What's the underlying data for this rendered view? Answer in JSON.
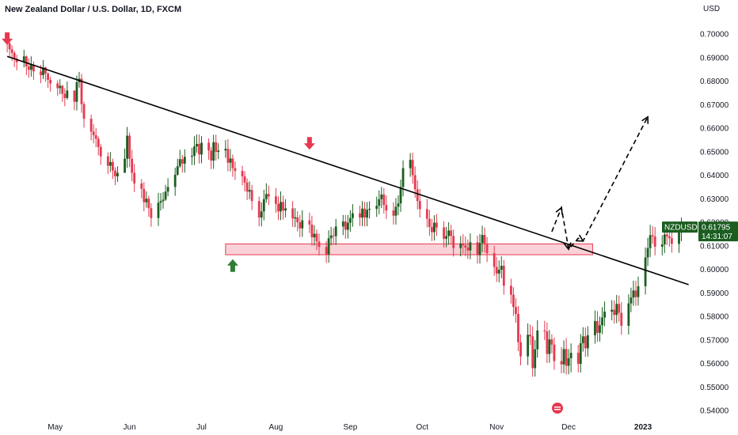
{
  "chart_data": {
    "type": "candlestick",
    "title": "New Zealand Dollar / U.S. Dollar, 1D, FXCM",
    "currency_label": "USD",
    "y_ticks": [
      "0.70000",
      "0.69000",
      "0.68000",
      "0.67000",
      "0.66000",
      "0.65000",
      "0.64000",
      "0.63000",
      "0.62000",
      "0.61000",
      "0.60000",
      "0.59000",
      "0.58000",
      "0.57000",
      "0.56000",
      "0.55000",
      "0.54000"
    ],
    "y_tick_values": [
      0.7,
      0.69,
      0.68,
      0.67,
      0.66,
      0.65,
      0.64,
      0.63,
      0.62,
      0.61,
      0.6,
      0.59,
      0.58,
      0.57,
      0.56,
      0.55,
      0.54
    ],
    "ylim": [
      0.5385,
      0.713
    ],
    "x_labels": [
      {
        "label": "May",
        "date": "2022-05-01"
      },
      {
        "label": "Jun",
        "date": "2022-06-01"
      },
      {
        "label": "Jul",
        "date": "2022-07-01"
      },
      {
        "label": "Aug",
        "date": "2022-08-01"
      },
      {
        "label": "Sep",
        "date": "2022-09-01"
      },
      {
        "label": "Oct",
        "date": "2022-10-01"
      },
      {
        "label": "Nov",
        "date": "2022-11-01"
      },
      {
        "label": "Dec",
        "date": "2022-12-01"
      },
      {
        "label": "2023",
        "date": "2023-01-01"
      }
    ],
    "xlim": [
      "2022-04-08",
      "2023-01-21"
    ],
    "colors": {
      "up": "#1b5e20",
      "down": "#e53950",
      "trendline": "#000000",
      "zone_fill": "#f8c9cf",
      "zone_stroke": "#e53950",
      "arrow_down": "#e53950",
      "arrow_up": "#2e7d32",
      "tag_bg": "#1b5e20",
      "tag_text": "#ffffff"
    },
    "closes": [
      0.696,
      0.6935,
      0.692,
      0.6895,
      0.688,
      0.6905,
      0.6862,
      0.6848,
      0.687,
      0.6841,
      0.6825,
      0.6858,
      0.6832,
      0.6805,
      0.679,
      0.677,
      0.678,
      0.6746,
      0.6728,
      0.676,
      0.6712,
      0.6795,
      0.681,
      0.6702,
      0.664,
      0.6585,
      0.657,
      0.6555,
      0.652,
      0.648,
      0.644,
      0.6456,
      0.642,
      0.6395,
      0.641,
      0.647,
      0.6568,
      0.647,
      0.641,
      0.6365,
      0.6342,
      0.6285,
      0.63,
      0.626,
      0.6218,
      0.6283,
      0.629,
      0.6296,
      0.633,
      0.635,
      0.6402,
      0.6438,
      0.6468,
      0.6449,
      0.6478,
      0.6482,
      0.6522,
      0.6533,
      0.6488,
      0.6538,
      0.6505,
      0.6462,
      0.654,
      0.6499,
      0.6505,
      0.6512,
      0.6453,
      0.6471,
      0.643,
      0.6418,
      0.6395,
      0.6369,
      0.633,
      0.6337,
      0.629,
      0.622,
      0.6246,
      0.6298,
      0.632,
      0.631,
      0.6278,
      0.6246,
      0.6286,
      0.625,
      0.6259,
      0.6216,
      0.6221,
      0.62,
      0.6174,
      0.6208,
      0.619,
      0.6136,
      0.6151,
      0.6118,
      0.6095,
      0.6064,
      0.6132,
      0.6144,
      0.6141,
      0.6182,
      0.6203,
      0.6168,
      0.6198,
      0.6218,
      0.6238,
      0.622,
      0.6258,
      0.622,
      0.6253,
      0.6257,
      0.627,
      0.6298,
      0.6318,
      0.6273,
      0.625,
      0.6228,
      0.6266,
      0.628,
      0.635,
      0.643,
      0.6465,
      0.64,
      0.634,
      0.629,
      0.6256,
      0.6215,
      0.618,
      0.6158,
      0.6198,
      0.6178,
      0.613,
      0.6141,
      0.6165,
      0.6142,
      0.609,
      0.611,
      0.6102,
      0.6092,
      0.608,
      0.6115,
      0.606,
      0.6112,
      0.6146,
      0.6108,
      0.6068,
      0.601,
      0.5982,
      0.5998,
      0.6015,
      0.593,
      0.5892,
      0.584,
      0.581,
      0.569,
      0.563,
      0.5722,
      0.5715,
      0.558,
      0.566,
      0.574,
      0.5736,
      0.564,
      0.5702,
      0.568,
      0.561,
      0.5596,
      0.5661,
      0.559,
      0.5622,
      0.5645,
      0.5598,
      0.5686,
      0.5715,
      0.5664,
      0.572,
      0.578,
      0.573,
      0.5762,
      0.5795,
      0.582,
      0.5828,
      0.5806,
      0.5853,
      0.5815,
      0.576,
      0.5855,
      0.588,
      0.591,
      0.5882,
      0.5928,
      0.605,
      0.609,
      0.6145,
      0.614,
      0.6096,
      0.6106,
      0.6148,
      0.614,
      0.6132,
      0.6108,
      0.6158,
      0.618
    ],
    "highs": [
      0.6992,
      0.697,
      0.6952,
      0.6928,
      0.6912,
      0.6933,
      0.6909,
      0.6896,
      0.6905,
      0.6883,
      0.6868,
      0.6889,
      0.6861,
      0.6837,
      0.6818,
      0.6803,
      0.6808,
      0.6784,
      0.6769,
      0.6798,
      0.6754,
      0.6823,
      0.6839,
      0.6831,
      0.6712,
      0.6657,
      0.6616,
      0.6601,
      0.6565,
      0.6532,
      0.6497,
      0.6498,
      0.647,
      0.6434,
      0.6438,
      0.6513,
      0.6605,
      0.6581,
      0.6508,
      0.6448,
      0.6383,
      0.6371,
      0.6331,
      0.6313,
      0.628,
      0.6325,
      0.6324,
      0.6328,
      0.6359,
      0.6387,
      0.6432,
      0.647,
      0.6508,
      0.6486,
      0.651,
      0.6516,
      0.6566,
      0.6573,
      0.6573,
      0.6566,
      0.6556,
      0.652,
      0.6572,
      0.6572,
      0.6536,
      0.6549,
      0.6553,
      0.6511,
      0.6488,
      0.6459,
      0.644,
      0.6417,
      0.6386,
      0.6374,
      0.6359,
      0.6309,
      0.6284,
      0.6338,
      0.6366,
      0.6356,
      0.6345,
      0.631,
      0.6331,
      0.6313,
      0.6298,
      0.629,
      0.626,
      0.6247,
      0.6231,
      0.6251,
      0.6241,
      0.6228,
      0.6187,
      0.6169,
      0.6152,
      0.612,
      0.6166,
      0.618,
      0.6175,
      0.6214,
      0.6231,
      0.6231,
      0.6231,
      0.6251,
      0.6277,
      0.6271,
      0.629,
      0.6287,
      0.6286,
      0.6289,
      0.6309,
      0.6335,
      0.635,
      0.6345,
      0.6314,
      0.6285,
      0.6303,
      0.6315,
      0.6381,
      0.6463,
      0.6494,
      0.6495,
      0.6437,
      0.6378,
      0.6341,
      0.6299,
      0.6252,
      0.6214,
      0.623,
      0.6235,
      0.6204,
      0.618,
      0.62,
      0.6189,
      0.6169,
      0.6141,
      0.6149,
      0.614,
      0.6127,
      0.6153,
      0.6143,
      0.615,
      0.6185,
      0.6178,
      0.6137,
      0.61,
      0.6053,
      0.6038,
      0.6055,
      0.604,
      0.596,
      0.5924,
      0.5877,
      0.5844,
      0.5724,
      0.577,
      0.5765,
      0.5757,
      0.57,
      0.5784,
      0.5781,
      0.5774,
      0.5742,
      0.5724,
      0.571,
      0.5669,
      0.5698,
      0.5708,
      0.5661,
      0.5685,
      0.5679,
      0.5725,
      0.5754,
      0.5753,
      0.5758,
      0.5825,
      0.5822,
      0.5799,
      0.5839,
      0.5863,
      0.5869,
      0.5868,
      0.5891,
      0.5889,
      0.586,
      0.5894,
      0.5922,
      0.5952,
      0.5951,
      0.5969,
      0.6093,
      0.6134,
      0.6189,
      0.6183,
      0.618,
      0.6145,
      0.619,
      0.6185,
      0.6175,
      0.617,
      0.6198,
      0.622
    ],
    "lows": [
      0.6922,
      0.6898,
      0.6885,
      0.686,
      0.6846,
      0.6858,
      0.6826,
      0.6814,
      0.6819,
      0.6805,
      0.6791,
      0.6808,
      0.6797,
      0.6771,
      0.6755,
      0.6738,
      0.6744,
      0.6712,
      0.6693,
      0.6721,
      0.6676,
      0.6675,
      0.6772,
      0.6665,
      0.6602,
      0.6548,
      0.6535,
      0.6519,
      0.6484,
      0.6444,
      0.6405,
      0.6413,
      0.6384,
      0.6358,
      0.6372,
      0.6433,
      0.6431,
      0.6434,
      0.6374,
      0.6328,
      0.6302,
      0.6247,
      0.6262,
      0.6223,
      0.6181,
      0.6184,
      0.625,
      0.6258,
      0.6291,
      0.631,
      0.6312,
      0.6398,
      0.6431,
      0.6411,
      0.6411,
      0.6443,
      0.6443,
      0.6495,
      0.645,
      0.6451,
      0.6466,
      0.6426,
      0.6427,
      0.6462,
      0.6469,
      0.6474,
      0.6417,
      0.6416,
      0.6393,
      0.638,
      0.6357,
      0.6331,
      0.6294,
      0.6298,
      0.6252,
      0.6183,
      0.6182,
      0.6208,
      0.6283,
      0.6273,
      0.624,
      0.6209,
      0.6209,
      0.6212,
      0.6221,
      0.618,
      0.6179,
      0.6162,
      0.6137,
      0.6138,
      0.6154,
      0.61,
      0.6101,
      0.6082,
      0.6059,
      0.6027,
      0.6028,
      0.6102,
      0.6104,
      0.6103,
      0.6145,
      0.613,
      0.6131,
      0.616,
      0.6181,
      0.6184,
      0.6184,
      0.6182,
      0.6183,
      0.6216,
      0.6223,
      0.6234,
      0.626,
      0.6237,
      0.6214,
      0.619,
      0.619,
      0.623,
      0.6244,
      0.631,
      0.6393,
      0.6364,
      0.6304,
      0.6254,
      0.622,
      0.6178,
      0.6142,
      0.612,
      0.6122,
      0.6142,
      0.6093,
      0.6094,
      0.6105,
      0.6106,
      0.6054,
      0.6055,
      0.6066,
      0.6056,
      0.6044,
      0.6043,
      0.6024,
      0.6025,
      0.6073,
      0.6071,
      0.6031,
      0.5972,
      0.5946,
      0.5945,
      0.5962,
      0.5892,
      0.5854,
      0.5802,
      0.5773,
      0.5652,
      0.5592,
      0.5593,
      0.5678,
      0.5543,
      0.5544,
      0.5624,
      0.5699,
      0.5602,
      0.5603,
      0.5643,
      0.5573,
      0.5558,
      0.5559,
      0.5553,
      0.5554,
      0.5562,
      0.5562,
      0.5561,
      0.565,
      0.5628,
      0.5629,
      0.5684,
      0.5692,
      0.5693,
      0.5724,
      0.5758,
      0.5783,
      0.577,
      0.5771,
      0.5778,
      0.5722,
      0.5723,
      0.5818,
      0.5845,
      0.5845,
      0.5846,
      0.5893,
      0.6014,
      0.6052,
      0.6108,
      0.6059,
      0.6059,
      0.6069,
      0.6103,
      0.6096,
      0.6071,
      0.607,
      0.612
    ],
    "trendline": {
      "p1": {
        "date": "2022-04-11",
        "price": 0.6905
      },
      "p2": {
        "date": "2023-01-20",
        "price": 0.5935
      }
    },
    "support_zone": {
      "from": "2022-07-11",
      "to": "2022-12-11",
      "top": 0.6108,
      "bottom": 0.6062
    },
    "projection_path": [
      {
        "date": "2022-11-24",
        "price": 0.616
      },
      {
        "date": "2022-11-28",
        "price": 0.6262
      },
      {
        "date": "2022-12-01",
        "price": 0.6085
      },
      {
        "date": "2022-12-05",
        "price": 0.6132
      },
      {
        "date": "2022-12-07",
        "price": 0.612
      },
      {
        "date": "2023-01-03",
        "price": 0.6648
      }
    ],
    "markers": [
      {
        "type": "down",
        "date": "2022-04-11",
        "price": 0.696
      },
      {
        "type": "down",
        "date": "2022-08-15",
        "price": 0.6515
      },
      {
        "type": "up",
        "date": "2022-07-14",
        "price": 0.6036
      }
    ],
    "price_tag": {
      "symbol": "NZDUSD",
      "price": "0.61795",
      "countdown": "14:31:07",
      "value": 0.61795
    }
  }
}
